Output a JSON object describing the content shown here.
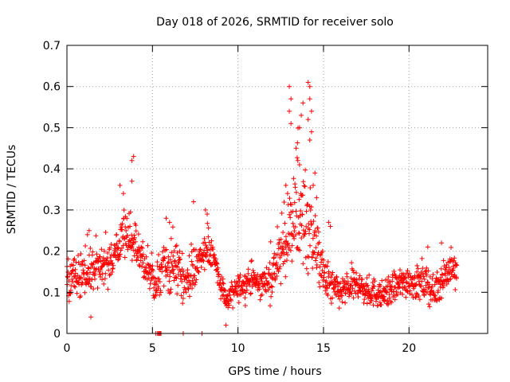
{
  "chart_data": {
    "type": "scatter",
    "title": "Day 018 of 2026, SRMTID for receiver solo",
    "xlabel": "GPS time / hours",
    "ylabel": "SRMTID / TECUs",
    "xlim": [
      0,
      24.6
    ],
    "ylim": [
      0,
      0.7
    ],
    "xticks": [
      0,
      5,
      10,
      15,
      20
    ],
    "xtick_labels": [
      "0",
      "5",
      "10",
      "15",
      "20"
    ],
    "yticks": [
      0,
      0.1,
      0.2,
      0.3,
      0.4,
      0.5,
      0.6,
      0.7
    ],
    "ytick_labels": [
      "0",
      "0.1",
      "0.2",
      "0.3",
      "0.4",
      "0.5",
      "0.6",
      "0.7"
    ],
    "grid": true,
    "marker": "+",
    "marker_color": "#ff0000",
    "axis_color": "#000000",
    "grid_color": "#a0a0a0",
    "series": [
      {
        "name": "SRMTID",
        "envelope": [
          [
            0.0,
            0.135,
            0.05
          ],
          [
            0.5,
            0.14,
            0.04
          ],
          [
            1.0,
            0.14,
            0.05
          ],
          [
            1.4,
            0.15,
            0.05
          ],
          [
            2.0,
            0.155,
            0.04
          ],
          [
            2.5,
            0.17,
            0.04
          ],
          [
            3.0,
            0.2,
            0.05
          ],
          [
            3.5,
            0.24,
            0.05
          ],
          [
            3.9,
            0.22,
            0.06
          ],
          [
            4.3,
            0.18,
            0.04
          ],
          [
            4.8,
            0.15,
            0.04
          ],
          [
            5.2,
            0.12,
            0.04
          ],
          [
            5.8,
            0.16,
            0.05
          ],
          [
            6.5,
            0.15,
            0.05
          ],
          [
            7.0,
            0.13,
            0.05
          ],
          [
            7.5,
            0.16,
            0.04
          ],
          [
            8.0,
            0.19,
            0.04
          ],
          [
            8.5,
            0.2,
            0.04
          ],
          [
            9.0,
            0.12,
            0.03
          ],
          [
            9.3,
            0.08,
            0.03
          ],
          [
            9.8,
            0.1,
            0.03
          ],
          [
            10.3,
            0.12,
            0.03
          ],
          [
            10.8,
            0.13,
            0.035
          ],
          [
            11.3,
            0.12,
            0.03
          ],
          [
            11.8,
            0.13,
            0.04
          ],
          [
            12.3,
            0.17,
            0.06
          ],
          [
            12.8,
            0.22,
            0.07
          ],
          [
            13.3,
            0.28,
            0.09
          ],
          [
            13.7,
            0.28,
            0.1
          ],
          [
            14.2,
            0.26,
            0.1
          ],
          [
            14.6,
            0.2,
            0.07
          ],
          [
            15.0,
            0.14,
            0.05
          ],
          [
            15.5,
            0.11,
            0.04
          ],
          [
            16.0,
            0.1,
            0.035
          ],
          [
            16.5,
            0.11,
            0.03
          ],
          [
            17.0,
            0.12,
            0.035
          ],
          [
            17.5,
            0.1,
            0.03
          ],
          [
            18.0,
            0.1,
            0.03
          ],
          [
            18.5,
            0.09,
            0.03
          ],
          [
            19.0,
            0.11,
            0.035
          ],
          [
            19.5,
            0.12,
            0.035
          ],
          [
            20.0,
            0.13,
            0.035
          ],
          [
            20.5,
            0.12,
            0.035
          ],
          [
            21.0,
            0.12,
            0.04
          ],
          [
            21.5,
            0.1,
            0.03
          ],
          [
            22.0,
            0.14,
            0.04
          ],
          [
            22.5,
            0.16,
            0.04
          ],
          [
            22.8,
            0.14,
            0.04
          ]
        ],
        "spikes": [
          [
            13.0,
            0.6
          ],
          [
            13.1,
            0.57
          ],
          [
            13.0,
            0.54
          ],
          [
            13.1,
            0.51
          ],
          [
            13.4,
            0.45
          ],
          [
            13.6,
            0.5
          ],
          [
            13.7,
            0.53
          ],
          [
            13.8,
            0.56
          ],
          [
            14.1,
            0.61
          ],
          [
            14.2,
            0.6
          ],
          [
            14.2,
            0.57
          ],
          [
            14.3,
            0.54
          ],
          [
            14.1,
            0.52
          ],
          [
            14.3,
            0.49
          ],
          [
            14.2,
            0.47
          ],
          [
            14.5,
            0.39
          ],
          [
            14.4,
            0.36
          ],
          [
            14.6,
            0.33
          ],
          [
            13.5,
            0.42
          ],
          [
            13.6,
            0.41
          ],
          [
            12.8,
            0.36
          ],
          [
            12.9,
            0.34
          ],
          [
            3.8,
            0.42
          ],
          [
            3.9,
            0.43
          ],
          [
            3.8,
            0.37
          ],
          [
            3.1,
            0.36
          ],
          [
            3.3,
            0.34
          ],
          [
            1.2,
            0.24
          ],
          [
            1.3,
            0.25
          ],
          [
            7.4,
            0.32
          ],
          [
            8.1,
            0.3
          ],
          [
            8.2,
            0.29
          ],
          [
            5.8,
            0.28
          ],
          [
            6.0,
            0.27
          ],
          [
            15.3,
            0.27
          ],
          [
            15.4,
            0.26
          ],
          [
            21.9,
            0.22
          ],
          [
            21.1,
            0.21
          ],
          [
            1.4,
            0.04
          ],
          [
            9.3,
            0.02
          ]
        ],
        "zeros": [
          5.2,
          5.3,
          5.35,
          5.4,
          5.45,
          5.5,
          6.8,
          7.9
        ]
      }
    ]
  }
}
